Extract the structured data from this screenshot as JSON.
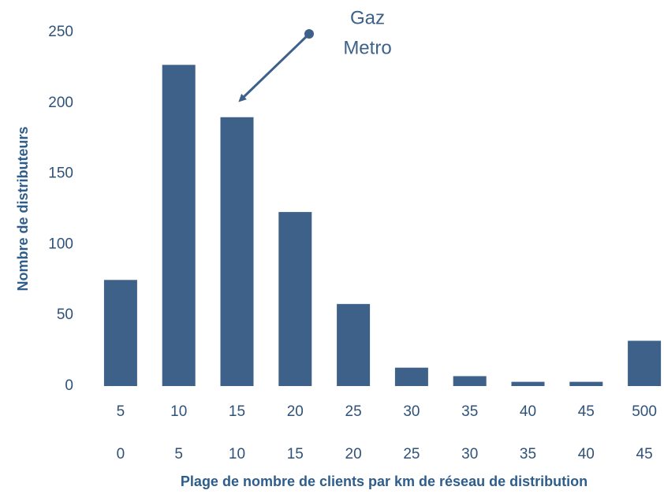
{
  "chart_data": {
    "type": "bar",
    "categories": [
      [
        "5",
        "0"
      ],
      [
        "10",
        "5"
      ],
      [
        "15",
        "10"
      ],
      [
        "20",
        "15"
      ],
      [
        "25",
        "20"
      ],
      [
        "30",
        "25"
      ],
      [
        "35",
        "30"
      ],
      [
        "40",
        "35"
      ],
      [
        "45",
        "40"
      ],
      [
        "500",
        "45"
      ]
    ],
    "values": [
      75,
      227,
      190,
      123,
      58,
      13,
      7,
      3,
      3,
      32
    ],
    "color": "#3e6189",
    "ylim": [
      0,
      250
    ],
    "yticks": [
      0,
      50,
      100,
      150,
      200,
      250
    ],
    "grid": false,
    "xlabel": "Plage de nombre de clients par km de réseau de distribution",
    "ylabel": "Nombre de distributeurs",
    "annotation": {
      "text": [
        "Gaz",
        "Metro"
      ],
      "color": "#3e6189"
    }
  }
}
